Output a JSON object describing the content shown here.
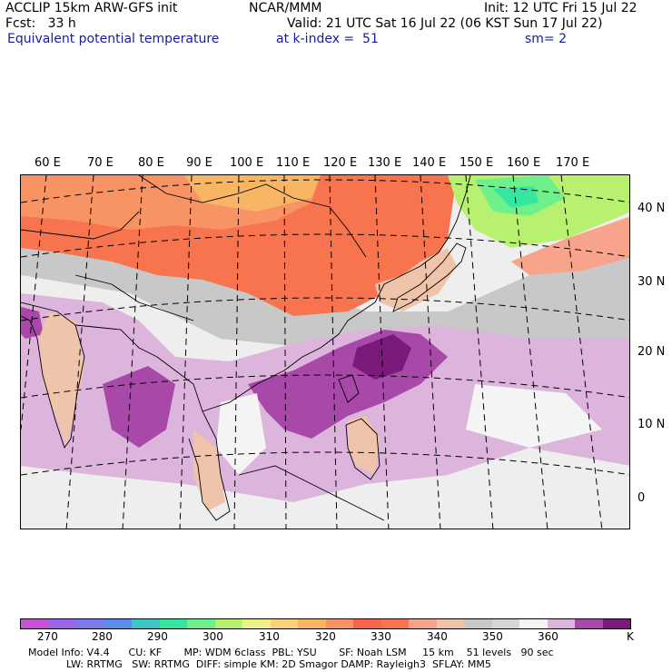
{
  "header": {
    "model": "ACCLIP 15km ARW-GFS init",
    "center": "NCAR/MMM",
    "init": "Init: 12 UTC Fri 15 Jul 22",
    "fcst": "Fcst:   33 h",
    "valid": "Valid: 21 UTC Sat 16 Jul 22 (06 KST Sun 17 Jul 22)",
    "field": "Equivalent potential temperature",
    "level": "at k-index =  51",
    "smooth": "sm= 2"
  },
  "map": {
    "lon_labels": [
      "60 E",
      "70 E",
      "80 E",
      "90 E",
      "100 E",
      "110 E",
      "120 E",
      "130 E",
      "140 E",
      "150 E",
      "160 E",
      "170 E"
    ],
    "lat_labels": [
      "40 N",
      "30 N",
      "20 N",
      "10 N",
      "0"
    ]
  },
  "colorbar": {
    "colors": [
      "#c852d6",
      "#9c64e6",
      "#7a7ae8",
      "#5a8ee8",
      "#3cc6c6",
      "#36e6a0",
      "#6ef08a",
      "#b8f070",
      "#f0f08a",
      "#f8d27a",
      "#f8b664",
      "#f89464",
      "#f86450",
      "#f8744e",
      "#f8a48c",
      "#f0c4aa",
      "#c8c8c8",
      "#d6d6d6",
      "#f4f4f4",
      "#dcb4dc",
      "#a848a8",
      "#7a1a7a"
    ],
    "labels": [
      "270",
      "280",
      "290",
      "300",
      "310",
      "320",
      "330",
      "340",
      "350",
      "360"
    ],
    "unit": "K"
  },
  "footer": {
    "line1": "Model Info: V4.4      CU: KF       MP: WDM 6class  PBL: YSU       SF: Noah LSM     15 km    51 levels   90 sec",
    "line2": "            LW: RRTMG   SW: RRTMG  DIFF: simple KM: 2D Smagor DAMP: Rayleigh3  SFLAY: MM5"
  }
}
